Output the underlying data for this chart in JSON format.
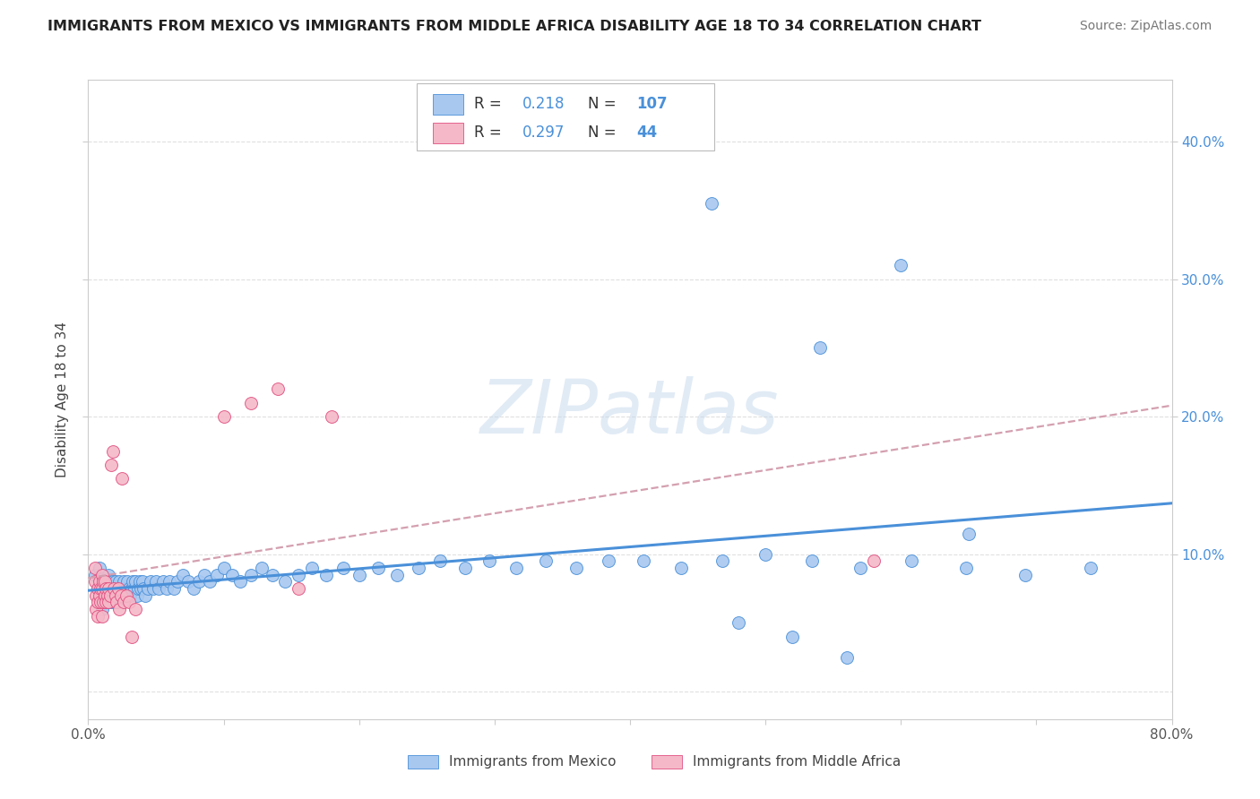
{
  "title": "IMMIGRANTS FROM MEXICO VS IMMIGRANTS FROM MIDDLE AFRICA DISABILITY AGE 18 TO 34 CORRELATION CHART",
  "source": "Source: ZipAtlas.com",
  "ylabel": "Disability Age 18 to 34",
  "ytick_values": [
    0.0,
    0.1,
    0.2,
    0.3,
    0.4
  ],
  "ytick_labels": [
    "",
    "10.0%",
    "20.0%",
    "30.0%",
    "40.0%"
  ],
  "xlim": [
    0.0,
    0.8
  ],
  "ylim": [
    -0.02,
    0.445
  ],
  "legend_r_mexico": "0.218",
  "legend_n_mexico": "107",
  "legend_r_africa": "0.297",
  "legend_n_africa": "44",
  "label_mexico": "Immigrants from Mexico",
  "label_africa": "Immigrants from Middle Africa",
  "color_mexico": "#a8c8f0",
  "color_africa": "#f5b8c8",
  "line_mexico": "#4a90d9",
  "line_africa": "#e05080",
  "trendline_africa_color": "#d4a0b0",
  "watermark": "ZIPatlas",
  "background_color": "#ffffff",
  "grid_color": "#e0e0e0",
  "mexico_x": [
    0.005,
    0.007,
    0.008,
    0.009,
    0.01,
    0.01,
    0.01,
    0.011,
    0.011,
    0.012,
    0.012,
    0.013,
    0.013,
    0.014,
    0.014,
    0.015,
    0.015,
    0.015,
    0.016,
    0.016,
    0.017,
    0.017,
    0.018,
    0.018,
    0.019,
    0.019,
    0.02,
    0.02,
    0.021,
    0.021,
    0.022,
    0.023,
    0.024,
    0.025,
    0.026,
    0.027,
    0.028,
    0.029,
    0.03,
    0.031,
    0.032,
    0.033,
    0.034,
    0.035,
    0.036,
    0.037,
    0.038,
    0.039,
    0.04,
    0.041,
    0.042,
    0.044,
    0.046,
    0.048,
    0.05,
    0.052,
    0.055,
    0.058,
    0.06,
    0.063,
    0.066,
    0.07,
    0.074,
    0.078,
    0.082,
    0.086,
    0.09,
    0.095,
    0.1,
    0.106,
    0.112,
    0.12,
    0.128,
    0.136,
    0.145,
    0.155,
    0.165,
    0.176,
    0.188,
    0.2,
    0.214,
    0.228,
    0.244,
    0.26,
    0.278,
    0.296,
    0.316,
    0.338,
    0.36,
    0.384,
    0.41,
    0.438,
    0.468,
    0.5,
    0.534,
    0.57,
    0.608,
    0.648,
    0.692,
    0.74,
    0.46,
    0.54,
    0.6,
    0.65,
    0.48,
    0.52,
    0.56
  ],
  "mexico_y": [
    0.085,
    0.075,
    0.09,
    0.08,
    0.082,
    0.07,
    0.06,
    0.075,
    0.065,
    0.08,
    0.07,
    0.075,
    0.065,
    0.08,
    0.07,
    0.085,
    0.075,
    0.065,
    0.08,
    0.07,
    0.075,
    0.065,
    0.08,
    0.07,
    0.075,
    0.065,
    0.08,
    0.07,
    0.075,
    0.065,
    0.075,
    0.08,
    0.07,
    0.075,
    0.08,
    0.07,
    0.075,
    0.08,
    0.075,
    0.07,
    0.075,
    0.08,
    0.075,
    0.08,
    0.07,
    0.075,
    0.08,
    0.075,
    0.08,
    0.075,
    0.07,
    0.075,
    0.08,
    0.075,
    0.08,
    0.075,
    0.08,
    0.075,
    0.08,
    0.075,
    0.08,
    0.085,
    0.08,
    0.075,
    0.08,
    0.085,
    0.08,
    0.085,
    0.09,
    0.085,
    0.08,
    0.085,
    0.09,
    0.085,
    0.08,
    0.085,
    0.09,
    0.085,
    0.09,
    0.085,
    0.09,
    0.085,
    0.09,
    0.095,
    0.09,
    0.095,
    0.09,
    0.095,
    0.09,
    0.095,
    0.095,
    0.09,
    0.095,
    0.1,
    0.095,
    0.09,
    0.095,
    0.09,
    0.085,
    0.09,
    0.355,
    0.25,
    0.31,
    0.115,
    0.05,
    0.04,
    0.025
  ],
  "africa_x": [
    0.005,
    0.005,
    0.006,
    0.006,
    0.007,
    0.007,
    0.007,
    0.008,
    0.008,
    0.009,
    0.009,
    0.01,
    0.01,
    0.01,
    0.011,
    0.011,
    0.012,
    0.012,
    0.013,
    0.013,
    0.014,
    0.015,
    0.015,
    0.016,
    0.017,
    0.018,
    0.019,
    0.02,
    0.021,
    0.022,
    0.023,
    0.024,
    0.025,
    0.026,
    0.028,
    0.03,
    0.032,
    0.035,
    0.1,
    0.12,
    0.14,
    0.155,
    0.18,
    0.58
  ],
  "africa_y": [
    0.08,
    0.09,
    0.07,
    0.06,
    0.075,
    0.065,
    0.055,
    0.08,
    0.07,
    0.075,
    0.065,
    0.085,
    0.075,
    0.055,
    0.08,
    0.065,
    0.08,
    0.07,
    0.075,
    0.065,
    0.07,
    0.075,
    0.065,
    0.07,
    0.165,
    0.175,
    0.075,
    0.07,
    0.065,
    0.075,
    0.06,
    0.07,
    0.155,
    0.065,
    0.07,
    0.065,
    0.04,
    0.06,
    0.2,
    0.21,
    0.22,
    0.075,
    0.2,
    0.095
  ]
}
